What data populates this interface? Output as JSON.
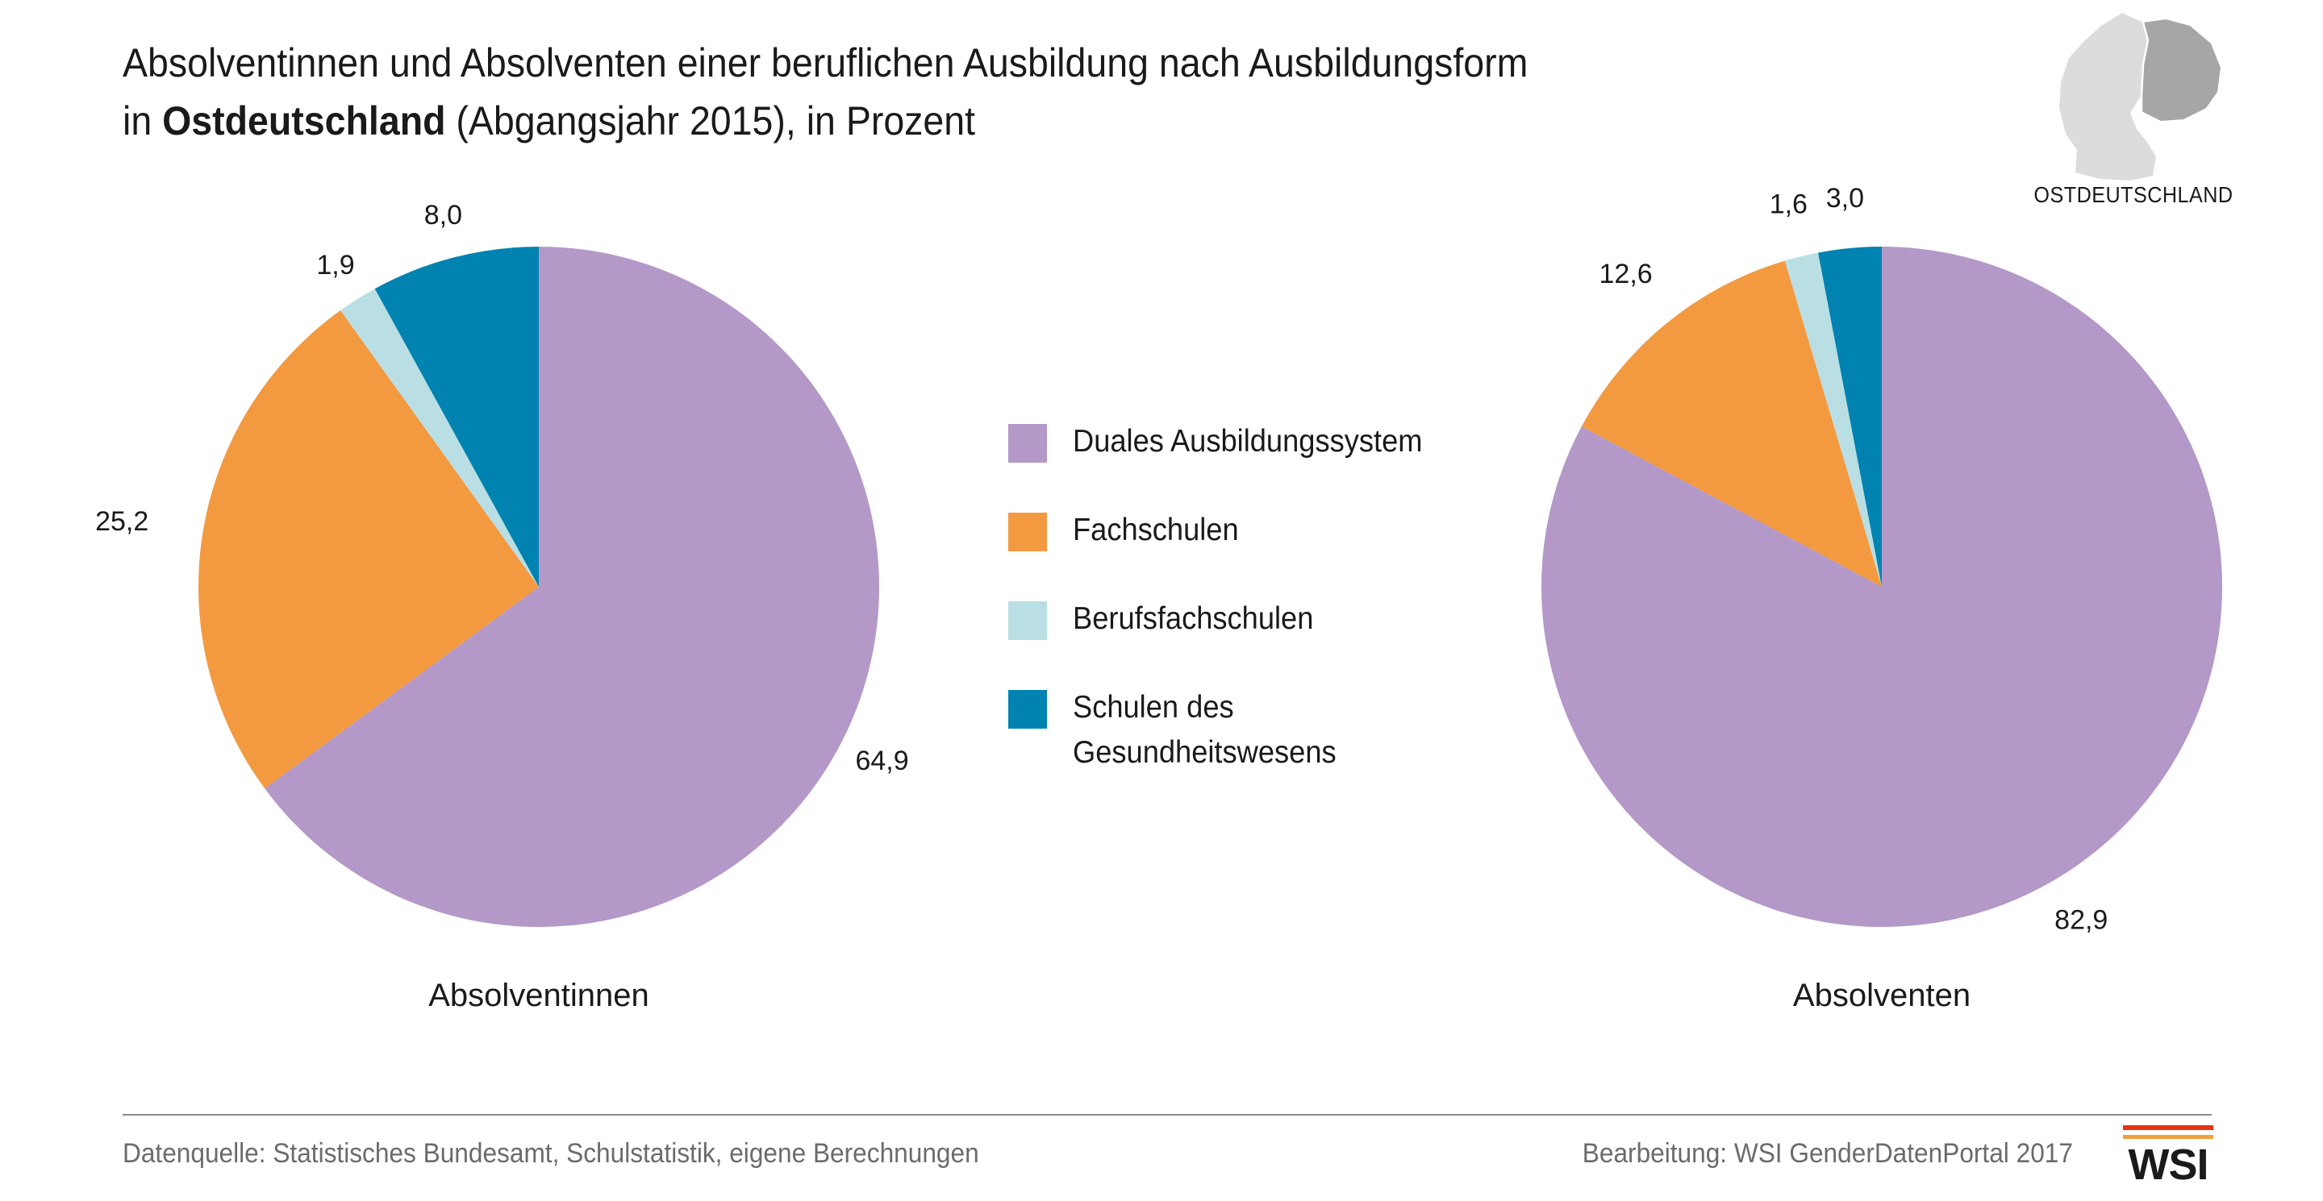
{
  "header": {
    "title_line1": "Absolventinnen und Absolventen einer beruflichen Ausbildung nach Ausbildungsform",
    "title_line2_prefix": "in ",
    "title_line2_bold": "Ostdeutschland",
    "title_line2_suffix": " (Abgangsjahr 2015), in Prozent"
  },
  "map": {
    "label": "OSTDEUTSCHLAND",
    "icon": "germany-map-icon"
  },
  "legend": {
    "items": [
      {
        "label": "Duales Ausbildungssystem",
        "color": "#b398c8"
      },
      {
        "label": "Fachschulen",
        "color": "#f39a41"
      },
      {
        "label": "Berufsfachschulen",
        "color": "#b9dfe4"
      },
      {
        "label": "Schulen des Gesundheitswesens",
        "label_line1": "Schulen des",
        "label_line2": "Gesundheitswesens",
        "color": "#0083b0"
      }
    ]
  },
  "chart_data": [
    {
      "type": "pie",
      "title": "Absolventinnen",
      "categories": [
        "Duales Ausbildungssystem",
        "Fachschulen",
        "Berufsfachschulen",
        "Schulen des Gesundheitswesens"
      ],
      "values": [
        64.9,
        25.2,
        1.9,
        8.0
      ],
      "labels": [
        "64,9",
        "25,2",
        "1,9",
        "8,0"
      ],
      "colors": [
        "#b398c8",
        "#f39a41",
        "#b9dfe4",
        "#0083b0"
      ]
    },
    {
      "type": "pie",
      "title": "Absolventen",
      "categories": [
        "Duales Ausbildungssystem",
        "Fachschulen",
        "Berufsfachschulen",
        "Schulen des Gesundheitswesens"
      ],
      "values": [
        82.9,
        12.6,
        1.6,
        3.0
      ],
      "labels": [
        "82,9",
        "12,6",
        "1,6",
        "3,0"
      ],
      "colors": [
        "#b398c8",
        "#f39a41",
        "#b9dfe4",
        "#0083b0"
      ]
    }
  ],
  "footer": {
    "source": "Datenquelle: Statistisches Bundesamt, Schulstatistik, eigene Berechnungen",
    "credit": "Bearbeitung: WSI GenderDatenPortal 2017",
    "logo_text": "WSI"
  }
}
